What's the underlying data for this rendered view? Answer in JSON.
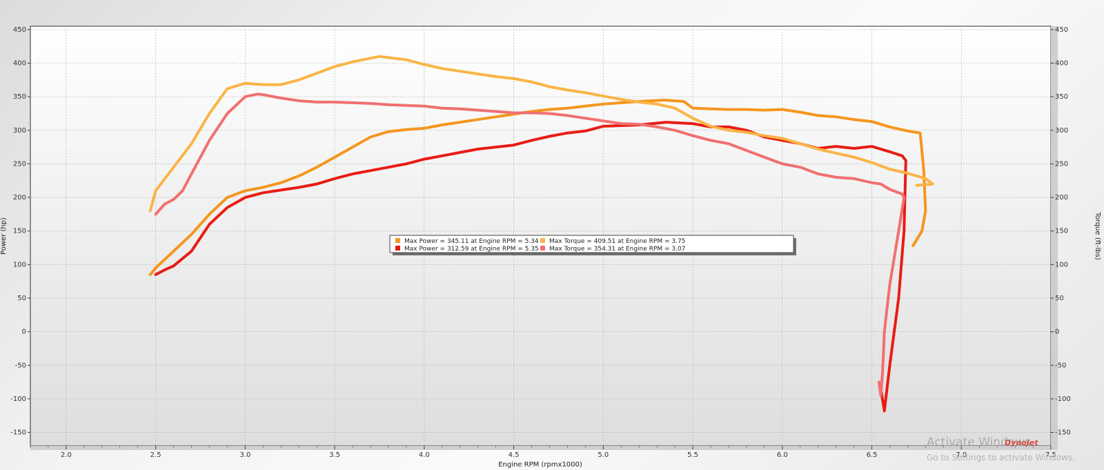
{
  "chart_data": {
    "type": "line",
    "title": "",
    "xlabel": "Engine RPM (rpmx1000)",
    "ylabel_left": "Power (hp)",
    "ylabel_right": "Torque (ft-lbs)",
    "xlim": [
      1.8,
      7.5
    ],
    "ylim": [
      -170,
      455
    ],
    "x_ticks": [
      "2.0",
      "2.5",
      "3.0",
      "3.5",
      "4.0",
      "4.5",
      "5.0",
      "5.5",
      "6.0",
      "6.5",
      "7.0",
      "7.5"
    ],
    "y_ticks": [
      "450",
      "400",
      "350",
      "300",
      "250",
      "200",
      "150",
      "100",
      "50",
      "0",
      "-50",
      "-100",
      "-150"
    ],
    "grid": true,
    "legend_position": "center",
    "series": [
      {
        "legend": "Max Power = 345.11 at Engine RPM = 5.34",
        "color": "#f5961e",
        "points": [
          [
            2.47,
            85
          ],
          [
            2.5,
            95
          ],
          [
            2.6,
            120
          ],
          [
            2.7,
            145
          ],
          [
            2.8,
            175
          ],
          [
            2.9,
            200
          ],
          [
            3.0,
            210
          ],
          [
            3.1,
            215
          ],
          [
            3.2,
            222
          ],
          [
            3.3,
            232
          ],
          [
            3.4,
            245
          ],
          [
            3.5,
            260
          ],
          [
            3.6,
            275
          ],
          [
            3.7,
            290
          ],
          [
            3.8,
            298
          ],
          [
            3.9,
            301
          ],
          [
            4.0,
            303
          ],
          [
            4.1,
            308
          ],
          [
            4.2,
            312
          ],
          [
            4.3,
            316
          ],
          [
            4.4,
            320
          ],
          [
            4.5,
            324
          ],
          [
            4.6,
            328
          ],
          [
            4.7,
            331
          ],
          [
            4.8,
            333
          ],
          [
            4.9,
            336
          ],
          [
            5.0,
            339
          ],
          [
            5.1,
            341
          ],
          [
            5.2,
            343
          ],
          [
            5.34,
            345
          ],
          [
            5.45,
            343
          ],
          [
            5.5,
            333
          ],
          [
            5.6,
            332
          ],
          [
            5.7,
            331
          ],
          [
            5.8,
            331
          ],
          [
            5.9,
            330
          ],
          [
            6.0,
            331
          ],
          [
            6.1,
            327
          ],
          [
            6.2,
            322
          ],
          [
            6.3,
            320
          ],
          [
            6.4,
            316
          ],
          [
            6.5,
            313
          ],
          [
            6.6,
            305
          ],
          [
            6.7,
            299
          ],
          [
            6.77,
            296
          ],
          [
            6.79,
            240
          ],
          [
            6.8,
            180
          ],
          [
            6.78,
            150
          ],
          [
            6.73,
            128
          ]
        ]
      },
      {
        "legend": "Max Power = 312.59 at Engine RPM = 5.35",
        "color": "#e81c14",
        "points": [
          [
            2.5,
            85
          ],
          [
            2.55,
            92
          ],
          [
            2.6,
            98
          ],
          [
            2.7,
            120
          ],
          [
            2.8,
            160
          ],
          [
            2.9,
            185
          ],
          [
            3.0,
            200
          ],
          [
            3.1,
            207
          ],
          [
            3.2,
            211
          ],
          [
            3.3,
            215
          ],
          [
            3.4,
            220
          ],
          [
            3.5,
            228
          ],
          [
            3.6,
            235
          ],
          [
            3.7,
            240
          ],
          [
            3.8,
            245
          ],
          [
            3.9,
            250
          ],
          [
            4.0,
            257
          ],
          [
            4.1,
            262
          ],
          [
            4.2,
            267
          ],
          [
            4.3,
            272
          ],
          [
            4.4,
            275
          ],
          [
            4.5,
            278
          ],
          [
            4.6,
            285
          ],
          [
            4.7,
            291
          ],
          [
            4.8,
            296
          ],
          [
            4.9,
            299
          ],
          [
            5.0,
            306
          ],
          [
            5.1,
            307
          ],
          [
            5.2,
            308
          ],
          [
            5.35,
            312
          ],
          [
            5.5,
            310
          ],
          [
            5.6,
            305
          ],
          [
            5.7,
            305
          ],
          [
            5.8,
            300
          ],
          [
            5.9,
            290
          ],
          [
            6.0,
            285
          ],
          [
            6.1,
            280
          ],
          [
            6.2,
            273
          ],
          [
            6.3,
            276
          ],
          [
            6.4,
            273
          ],
          [
            6.5,
            276
          ],
          [
            6.6,
            268
          ],
          [
            6.67,
            262
          ],
          [
            6.69,
            255
          ],
          [
            6.68,
            150
          ],
          [
            6.65,
            50
          ],
          [
            6.6,
            -50
          ],
          [
            6.57,
            -118
          ],
          [
            6.55,
            -85
          ]
        ]
      },
      {
        "legend": "Max Torque = 409.51 at Engine RPM = 3.75",
        "color": "#fab446",
        "points": [
          [
            2.47,
            180
          ],
          [
            2.5,
            210
          ],
          [
            2.6,
            245
          ],
          [
            2.7,
            280
          ],
          [
            2.8,
            325
          ],
          [
            2.9,
            362
          ],
          [
            3.0,
            370
          ],
          [
            3.1,
            368
          ],
          [
            3.2,
            368
          ],
          [
            3.3,
            375
          ],
          [
            3.4,
            385
          ],
          [
            3.5,
            395
          ],
          [
            3.6,
            402
          ],
          [
            3.75,
            410
          ],
          [
            3.9,
            405
          ],
          [
            4.0,
            398
          ],
          [
            4.1,
            392
          ],
          [
            4.2,
            388
          ],
          [
            4.3,
            384
          ],
          [
            4.4,
            380
          ],
          [
            4.5,
            377
          ],
          [
            4.6,
            372
          ],
          [
            4.7,
            365
          ],
          [
            4.8,
            360
          ],
          [
            4.9,
            356
          ],
          [
            5.0,
            351
          ],
          [
            5.1,
            346
          ],
          [
            5.2,
            342
          ],
          [
            5.3,
            339
          ],
          [
            5.4,
            333
          ],
          [
            5.5,
            318
          ],
          [
            5.6,
            306
          ],
          [
            5.7,
            300
          ],
          [
            5.8,
            297
          ],
          [
            5.9,
            292
          ],
          [
            6.0,
            288
          ],
          [
            6.1,
            280
          ],
          [
            6.2,
            272
          ],
          [
            6.3,
            266
          ],
          [
            6.4,
            260
          ],
          [
            6.5,
            252
          ],
          [
            6.6,
            242
          ],
          [
            6.7,
            236
          ],
          [
            6.8,
            228
          ],
          [
            6.84,
            220
          ],
          [
            6.75,
            218
          ]
        ]
      },
      {
        "legend": "Max Torque = 354.31 at Engine RPM = 3.07",
        "color": "#f07070",
        "points": [
          [
            2.5,
            175
          ],
          [
            2.55,
            190
          ],
          [
            2.6,
            197
          ],
          [
            2.65,
            210
          ],
          [
            2.7,
            235
          ],
          [
            2.8,
            285
          ],
          [
            2.9,
            325
          ],
          [
            3.0,
            350
          ],
          [
            3.07,
            354
          ],
          [
            3.1,
            353
          ],
          [
            3.2,
            348
          ],
          [
            3.3,
            344
          ],
          [
            3.4,
            342
          ],
          [
            3.5,
            342
          ],
          [
            3.6,
            341
          ],
          [
            3.7,
            340
          ],
          [
            3.8,
            338
          ],
          [
            3.9,
            337
          ],
          [
            4.0,
            336
          ],
          [
            4.1,
            333
          ],
          [
            4.2,
            332
          ],
          [
            4.3,
            330
          ],
          [
            4.4,
            328
          ],
          [
            4.5,
            326
          ],
          [
            4.6,
            326
          ],
          [
            4.7,
            325
          ],
          [
            4.8,
            322
          ],
          [
            4.9,
            318
          ],
          [
            5.0,
            314
          ],
          [
            5.1,
            310
          ],
          [
            5.2,
            309
          ],
          [
            5.3,
            305
          ],
          [
            5.4,
            300
          ],
          [
            5.5,
            292
          ],
          [
            5.6,
            285
          ],
          [
            5.7,
            280
          ],
          [
            5.8,
            270
          ],
          [
            5.9,
            260
          ],
          [
            6.0,
            250
          ],
          [
            6.1,
            245
          ],
          [
            6.2,
            235
          ],
          [
            6.3,
            230
          ],
          [
            6.4,
            228
          ],
          [
            6.5,
            222
          ],
          [
            6.55,
            220
          ],
          [
            6.6,
            212
          ],
          [
            6.67,
            205
          ],
          [
            6.68,
            200
          ],
          [
            6.65,
            150
          ],
          [
            6.6,
            70
          ],
          [
            6.57,
            0
          ],
          [
            6.56,
            -60
          ],
          [
            6.55,
            -95
          ],
          [
            6.54,
            -75
          ]
        ]
      }
    ]
  },
  "overlay": {
    "watermark_title": "Activate Windows",
    "watermark_sub": "Go to Settings to activate Windows.",
    "logo": "DynoJet"
  }
}
